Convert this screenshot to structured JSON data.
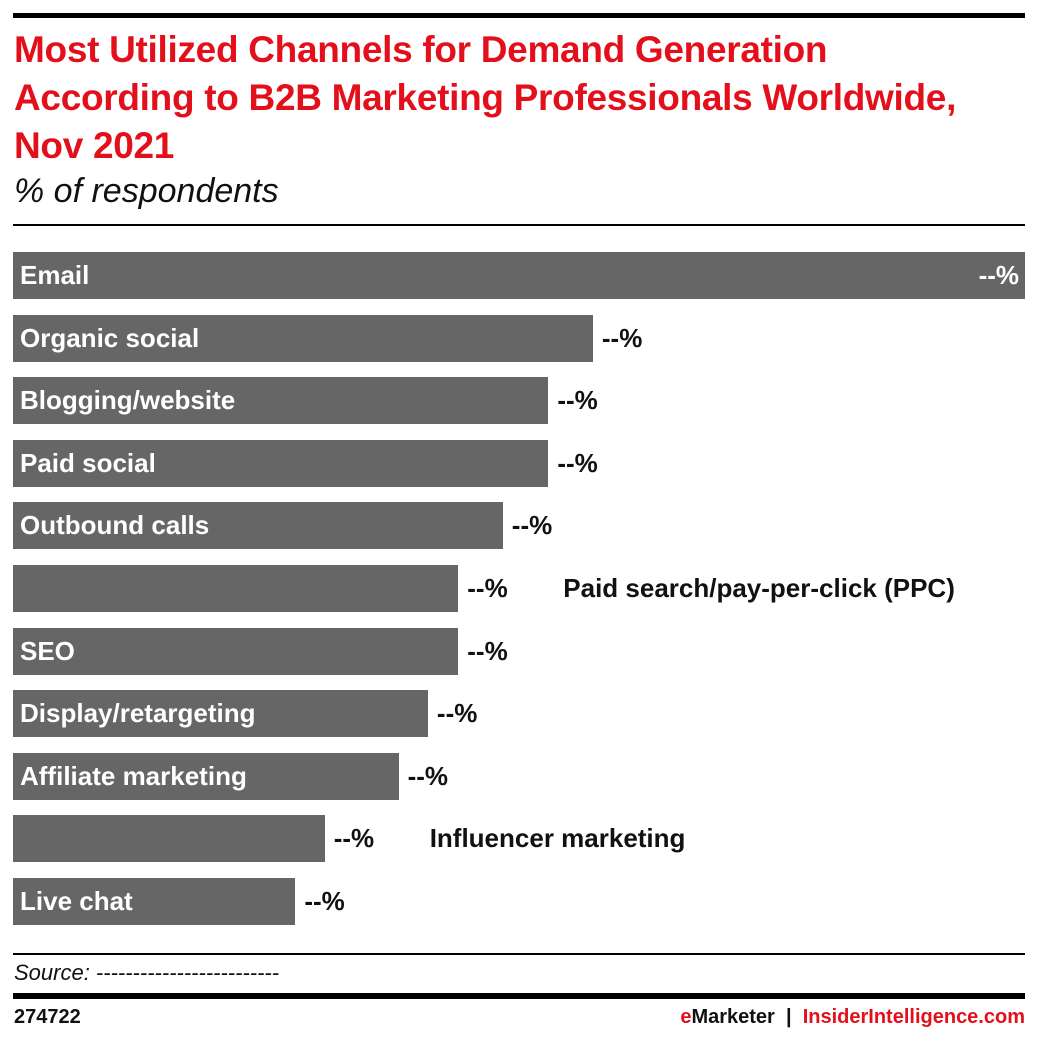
{
  "chart_data": {
    "type": "bar",
    "orientation": "horizontal",
    "title": "Most Utilized Channels for Demand Generation According to B2B Marketing Professionals Worldwide, Nov 2021",
    "subtitle": "% of respondents",
    "categories": [
      "Email",
      "Organic social",
      "Blogging/website",
      "Paid social",
      "Outbound calls",
      "Paid search/pay-per-click (PPC)",
      "SEO",
      "Display/retargeting",
      "Affiliate marketing",
      "Influencer marketing",
      "Live chat"
    ],
    "values": [
      100,
      57.3,
      52.9,
      52.9,
      48.4,
      44.0,
      44.0,
      41.0,
      38.1,
      30.8,
      27.9
    ],
    "value_note_units": "relative bar length, Email = 100",
    "data_labels": [
      "--%",
      "--%",
      "--%",
      "--%",
      "--%",
      "--%",
      "--%",
      "--%",
      "--%",
      "--%",
      "--%"
    ],
    "label_outside": [
      false,
      false,
      false,
      false,
      false,
      true,
      false,
      false,
      false,
      true,
      false
    ],
    "bar_color": "#666666",
    "title_color": "#e3101c",
    "grid": false,
    "legend": "none"
  },
  "footer": {
    "source": "Source: -------------------------",
    "chart_id": "274722",
    "brand_e": "e",
    "brand_rest": "Marketer",
    "separator": "|",
    "site": "InsiderIntelligence.com"
  }
}
